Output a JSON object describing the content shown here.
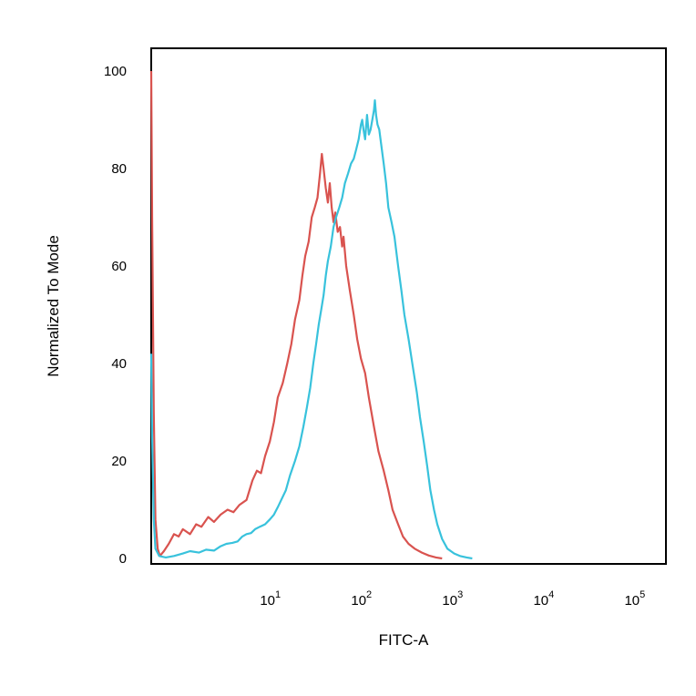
{
  "chart_data": {
    "type": "line",
    "title": "",
    "xlabel": "FITC-A",
    "ylabel": "Normalized To Mode",
    "x_scale": "log",
    "xlim": [
      0.45,
      200000
    ],
    "ylim": [
      0,
      100
    ],
    "grid": false,
    "y_ticks": [
      "0",
      "20",
      "40",
      "60",
      "80",
      "100"
    ],
    "x_ticks": [
      {
        "base": "10",
        "exp": "1",
        "value": 10
      },
      {
        "base": "10",
        "exp": "2",
        "value": 100
      },
      {
        "base": "10",
        "exp": "3",
        "value": 1000
      },
      {
        "base": "10",
        "exp": "4",
        "value": 10000
      },
      {
        "base": "10",
        "exp": "5",
        "value": 100000
      }
    ],
    "series": [
      {
        "color": "#d9534f",
        "points": [
          [
            0.45,
            100
          ],
          [
            0.46,
            70
          ],
          [
            0.48,
            30
          ],
          [
            0.5,
            8
          ],
          [
            0.53,
            2
          ],
          [
            0.56,
            0.5
          ],
          [
            0.62,
            1.5
          ],
          [
            0.7,
            3
          ],
          [
            0.8,
            5
          ],
          [
            0.9,
            4.5
          ],
          [
            1.0,
            6
          ],
          [
            1.2,
            5
          ],
          [
            1.4,
            7
          ],
          [
            1.6,
            6.5
          ],
          [
            1.9,
            8.5
          ],
          [
            2.2,
            7.5
          ],
          [
            2.6,
            9
          ],
          [
            3.1,
            10
          ],
          [
            3.6,
            9.5
          ],
          [
            4.2,
            11
          ],
          [
            5.0,
            12
          ],
          [
            5.8,
            16
          ],
          [
            6.5,
            18
          ],
          [
            7.2,
            17.5
          ],
          [
            8.0,
            21
          ],
          [
            9.0,
            24
          ],
          [
            10,
            28
          ],
          [
            11,
            33
          ],
          [
            12.5,
            36
          ],
          [
            14,
            40
          ],
          [
            15.5,
            44
          ],
          [
            17,
            49
          ],
          [
            19,
            53
          ],
          [
            20.5,
            58
          ],
          [
            22,
            62
          ],
          [
            24,
            65
          ],
          [
            26,
            70
          ],
          [
            28,
            72
          ],
          [
            30,
            74
          ],
          [
            32,
            79
          ],
          [
            33.5,
            83
          ],
          [
            35,
            80
          ],
          [
            37,
            76
          ],
          [
            39,
            73
          ],
          [
            41,
            77
          ],
          [
            43,
            72
          ],
          [
            45,
            69
          ],
          [
            47,
            71
          ],
          [
            50,
            67
          ],
          [
            53,
            68
          ],
          [
            56,
            64
          ],
          [
            58,
            66
          ],
          [
            62,
            60
          ],
          [
            68,
            55
          ],
          [
            75,
            50
          ],
          [
            82,
            45
          ],
          [
            90,
            41
          ],
          [
            100,
            38
          ],
          [
            110,
            33
          ],
          [
            125,
            27
          ],
          [
            140,
            22
          ],
          [
            160,
            18
          ],
          [
            180,
            14
          ],
          [
            200,
            10
          ],
          [
            230,
            7
          ],
          [
            260,
            4.5
          ],
          [
            300,
            3
          ],
          [
            350,
            2
          ],
          [
            420,
            1.2
          ],
          [
            500,
            0.6
          ],
          [
            600,
            0.2
          ],
          [
            700,
            0
          ]
        ]
      },
      {
        "color": "#38c2dc",
        "points": [
          [
            0.45,
            42
          ],
          [
            0.46,
            25
          ],
          [
            0.48,
            8
          ],
          [
            0.5,
            2
          ],
          [
            0.55,
            0.5
          ],
          [
            0.65,
            0.2
          ],
          [
            0.8,
            0.5
          ],
          [
            1.0,
            1
          ],
          [
            1.2,
            1.5
          ],
          [
            1.5,
            1.2
          ],
          [
            1.8,
            1.8
          ],
          [
            2.2,
            1.6
          ],
          [
            2.6,
            2.5
          ],
          [
            3.0,
            3
          ],
          [
            3.5,
            3.2
          ],
          [
            4.0,
            3.5
          ],
          [
            4.5,
            4.5
          ],
          [
            5.0,
            5
          ],
          [
            5.6,
            5.2
          ],
          [
            6.2,
            6
          ],
          [
            7.0,
            6.5
          ],
          [
            8.0,
            7
          ],
          [
            9.0,
            8
          ],
          [
            10,
            9
          ],
          [
            11,
            10.5
          ],
          [
            12,
            12
          ],
          [
            13.5,
            14
          ],
          [
            15,
            17
          ],
          [
            17,
            20
          ],
          [
            19,
            23
          ],
          [
            21,
            27
          ],
          [
            23,
            31
          ],
          [
            25,
            35
          ],
          [
            27,
            40
          ],
          [
            29,
            44
          ],
          [
            31,
            48
          ],
          [
            33,
            51
          ],
          [
            35,
            54
          ],
          [
            37,
            58
          ],
          [
            39,
            61
          ],
          [
            42,
            64
          ],
          [
            45,
            68
          ],
          [
            48,
            70
          ],
          [
            52,
            72
          ],
          [
            56,
            74
          ],
          [
            60,
            77
          ],
          [
            65,
            79
          ],
          [
            70,
            81
          ],
          [
            75,
            82
          ],
          [
            80,
            84
          ],
          [
            85,
            86
          ],
          [
            90,
            89
          ],
          [
            93,
            90
          ],
          [
            96,
            88
          ],
          [
            100,
            86
          ],
          [
            105,
            91
          ],
          [
            110,
            87
          ],
          [
            115,
            88
          ],
          [
            120,
            90
          ],
          [
            125,
            92
          ],
          [
            128,
            94
          ],
          [
            132,
            91
          ],
          [
            137,
            89
          ],
          [
            143,
            88
          ],
          [
            150,
            85
          ],
          [
            160,
            81
          ],
          [
            170,
            77
          ],
          [
            180,
            72
          ],
          [
            195,
            69
          ],
          [
            210,
            66
          ],
          [
            230,
            60
          ],
          [
            250,
            55
          ],
          [
            270,
            50
          ],
          [
            300,
            45
          ],
          [
            330,
            40
          ],
          [
            370,
            34
          ],
          [
            400,
            29
          ],
          [
            440,
            24
          ],
          [
            480,
            19
          ],
          [
            520,
            14
          ],
          [
            570,
            10
          ],
          [
            620,
            7
          ],
          [
            700,
            4
          ],
          [
            800,
            2
          ],
          [
            950,
            1
          ],
          [
            1100,
            0.5
          ],
          [
            1300,
            0.2
          ],
          [
            1500,
            0
          ]
        ]
      }
    ]
  }
}
